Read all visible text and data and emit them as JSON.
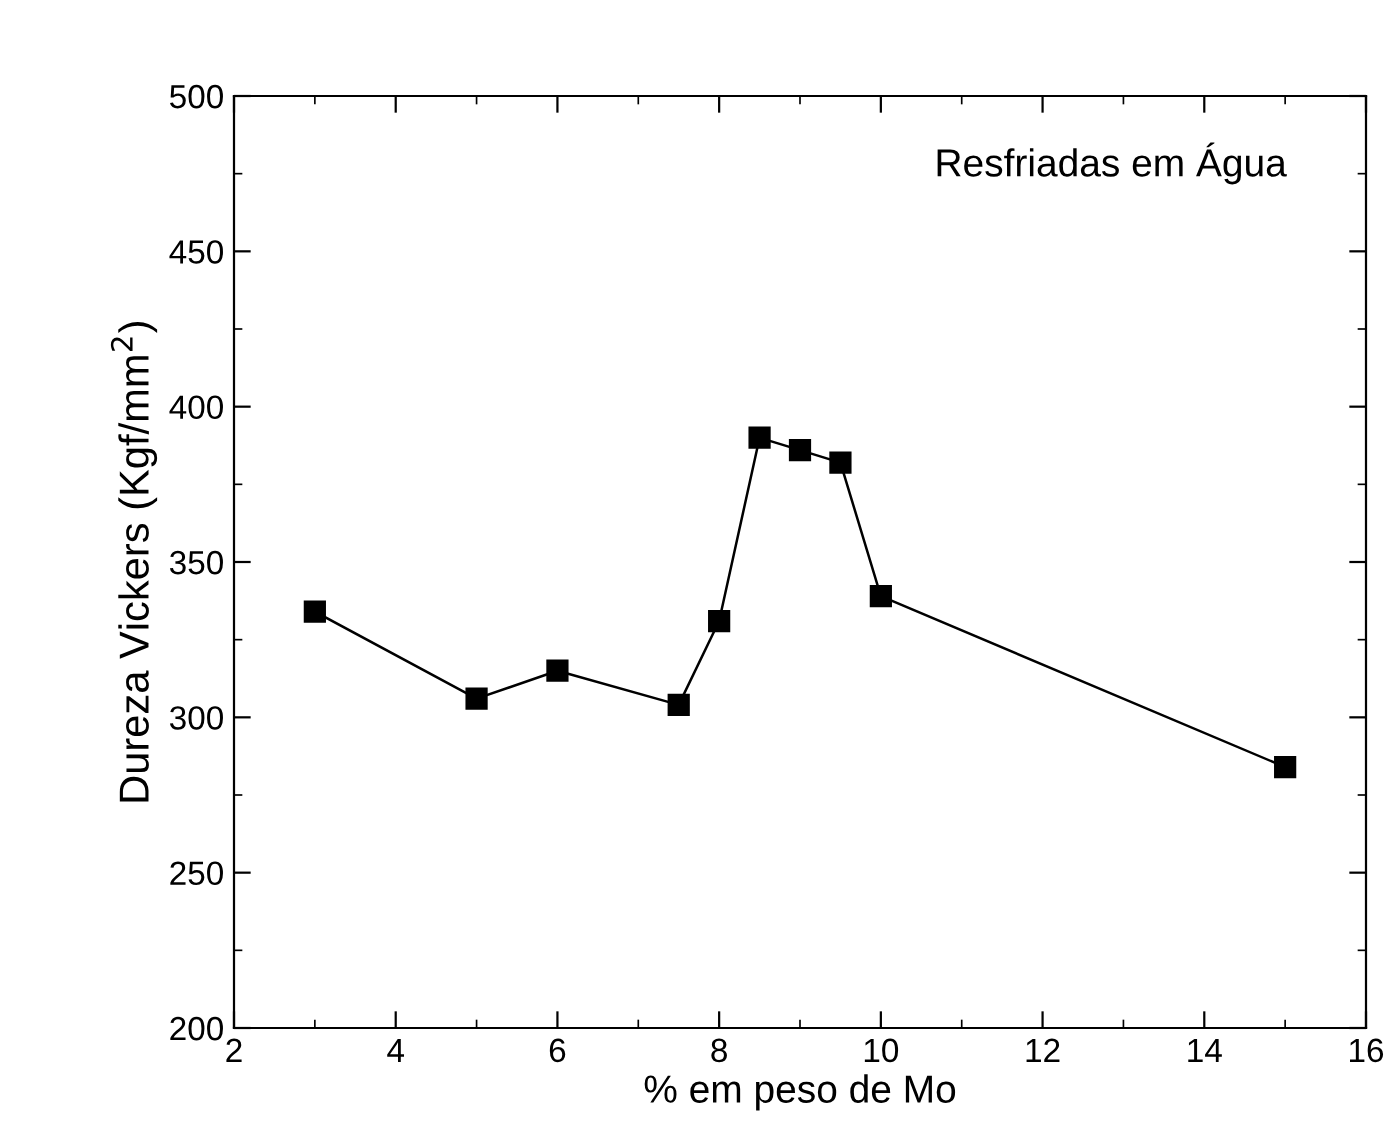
{
  "chart_data": {
    "type": "line",
    "xlabel": "% em peso de Mo",
    "ylabel": "Dureza Vickers (Kgf/mm$^{2}$)",
    "annotations": [
      "Resfriadas em Água"
    ],
    "series": [
      {
        "color": "#000000",
        "x": [
          3,
          5,
          6,
          7.5,
          8,
          8.5,
          9,
          9.5,
          10,
          15
        ],
        "values": [
          334,
          306,
          315,
          304,
          331,
          390,
          386,
          382,
          339,
          284
        ]
      }
    ],
    "xlim": [
      2,
      16
    ],
    "xticks": [
      2,
      4,
      6,
      8,
      10,
      12,
      14,
      16
    ],
    "ylim": [
      200,
      500
    ],
    "yticks": [
      200,
      250,
      300,
      350,
      400,
      450,
      500
    ],
    "marker": "square",
    "line_style": "solid",
    "grid": false,
    "legend": false
  }
}
